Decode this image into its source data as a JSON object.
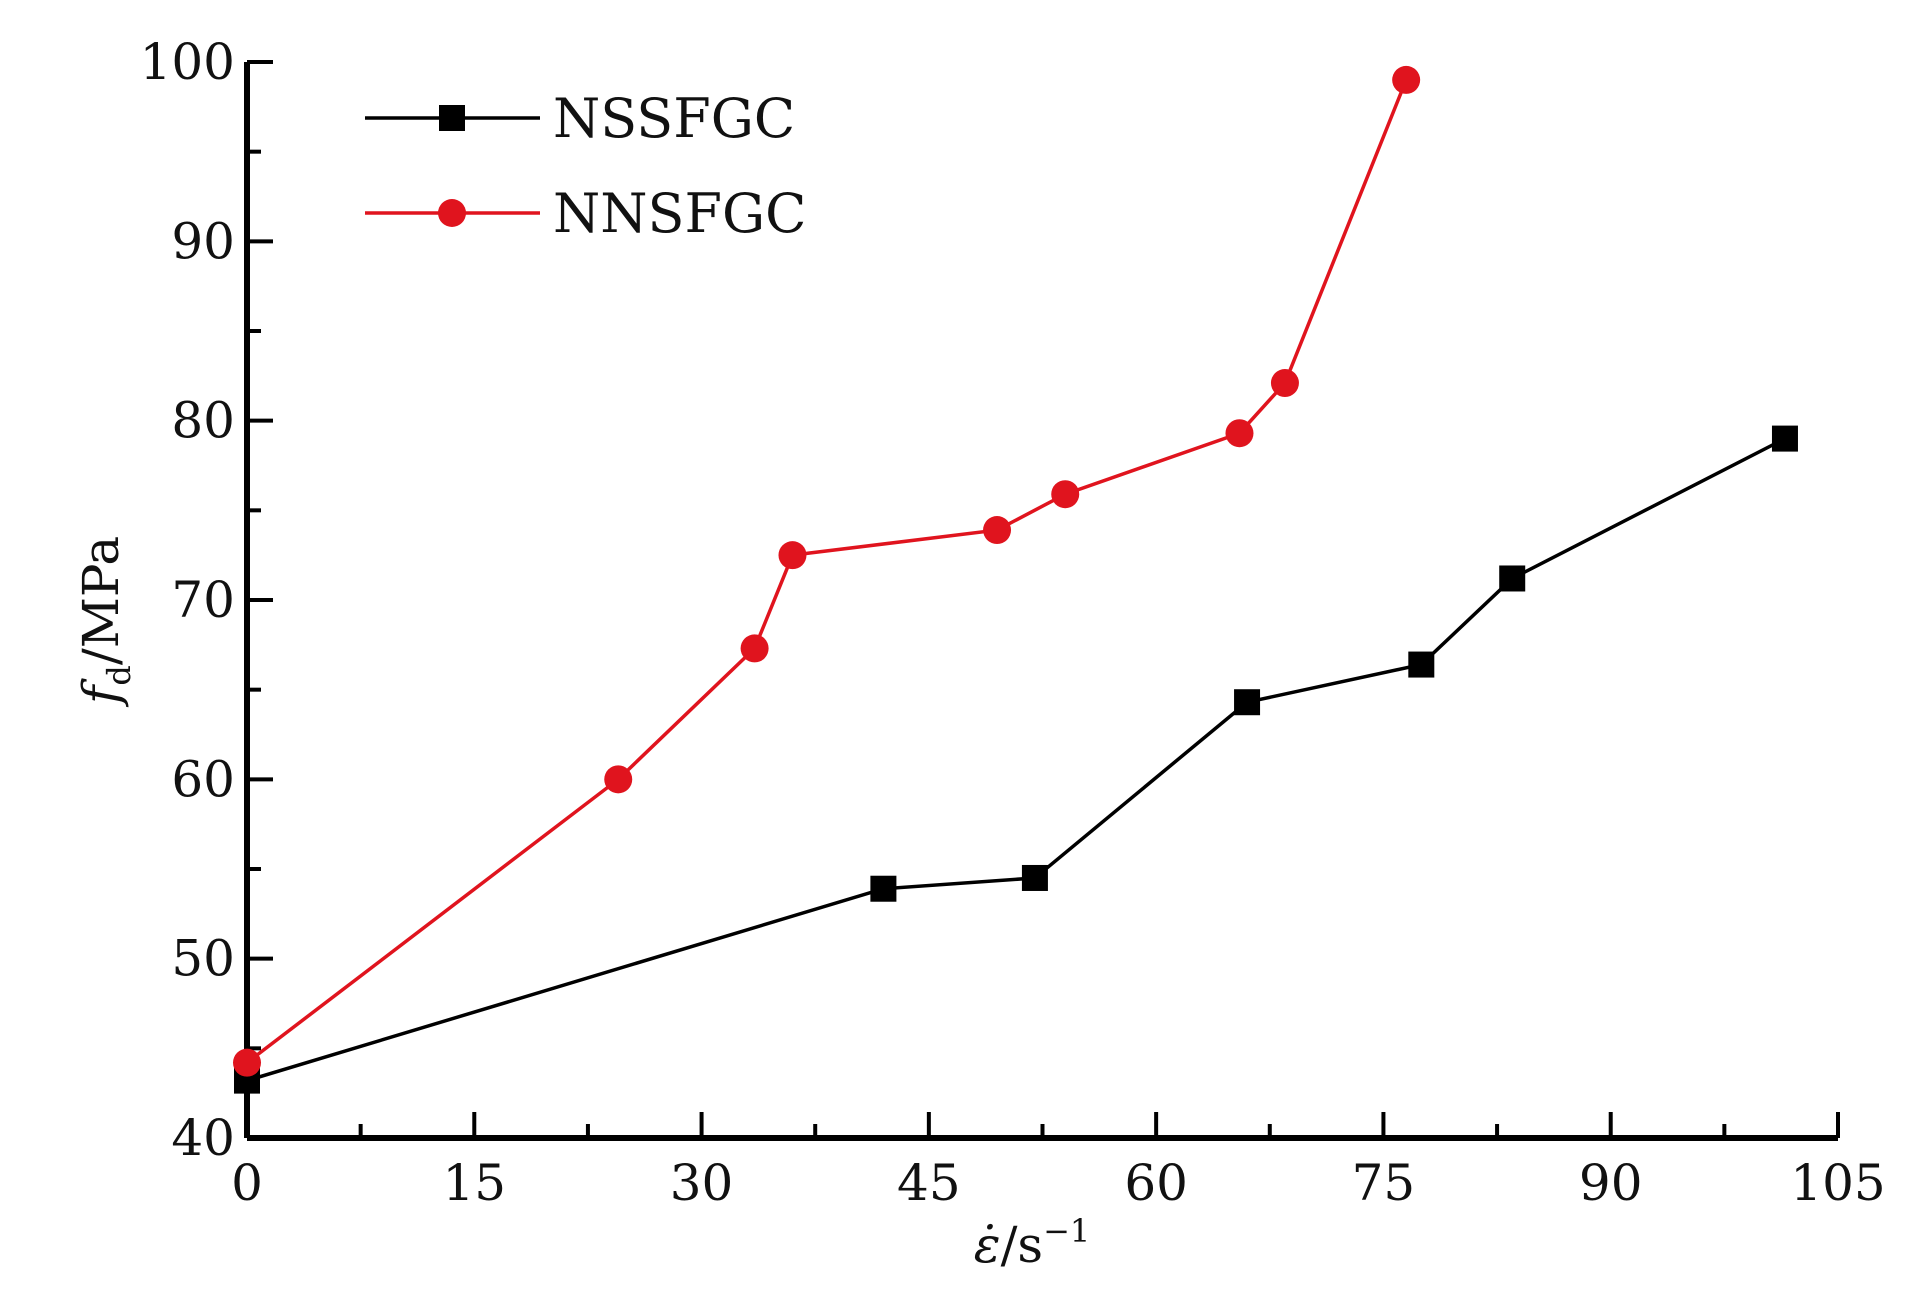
{
  "chart_data": {
    "type": "line",
    "title": "",
    "xlabel": "ε̇/s⁻¹",
    "ylabel": "fd/MPa",
    "xlabel_parts": {
      "symbol": "ε̇",
      "unit": "/s",
      "exp": "−1"
    },
    "ylabel_parts": {
      "symbol": "f",
      "sub": "d",
      "unit": "/MPa"
    },
    "xlim": [
      0,
      105
    ],
    "ylim": [
      40,
      100
    ],
    "xticks": [
      0,
      15,
      30,
      45,
      60,
      75,
      90,
      105
    ],
    "xminor": [
      7.5,
      22.5,
      37.5,
      52.5,
      67.5,
      82.5,
      97.5
    ],
    "yticks": [
      40,
      50,
      60,
      70,
      80,
      90,
      100
    ],
    "yminor": [
      45,
      55,
      65,
      75,
      85,
      95
    ],
    "grid": false,
    "legend": "top-left",
    "series": [
      {
        "name": "NSSFGC",
        "color": "#000000",
        "marker": "square",
        "x": [
          0,
          42,
          52,
          66,
          77.5,
          83.5,
          101.5
        ],
        "y": [
          43.2,
          53.9,
          54.5,
          64.3,
          66.4,
          71.2,
          79.0
        ]
      },
      {
        "name": "NNSFGC",
        "color": "#e0141e",
        "marker": "circle",
        "x": [
          0,
          24.5,
          33.5,
          36,
          49.5,
          54,
          65.5,
          68.5,
          76.5
        ],
        "y": [
          44.2,
          60.0,
          67.3,
          72.5,
          73.9,
          75.9,
          79.3,
          82.1,
          99.0
        ]
      }
    ]
  }
}
